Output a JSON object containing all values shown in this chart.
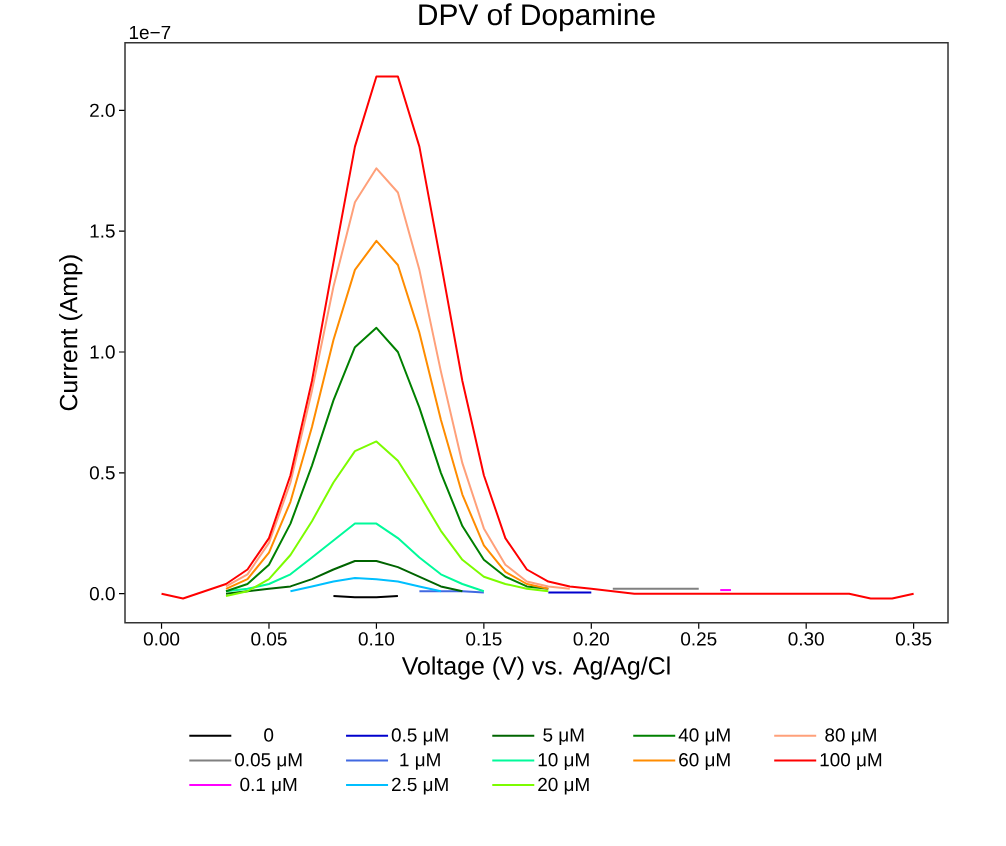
{
  "chart_data": {
    "type": "line",
    "title": "DPV of Dopamine",
    "xlabel": "Voltage (V) vs. Ag/Ag/Cl",
    "ylabel": "Current (Amp)",
    "annotations": [
      "1e−7"
    ],
    "x": [
      0,
      0.01,
      0.02,
      0.03,
      0.04,
      0.05,
      0.06,
      0.07,
      0.08,
      0.09,
      0.1,
      0.11,
      0.12,
      0.13,
      0.14,
      0.15,
      0.16,
      0.17,
      0.18,
      0.19,
      0.2,
      0.21,
      0.22,
      0.23,
      0.24,
      0.25,
      0.26,
      0.27,
      0.28,
      0.29,
      0.3,
      0.31,
      0.32,
      0.33,
      0.34,
      0.35
    ],
    "xlim": [
      -0.017,
      0.366
    ],
    "ylim": [
      -0.12,
      2.28
    ],
    "xticks": [
      {
        "value": 0,
        "label": "0.00"
      },
      {
        "value": 0.05,
        "label": "0.05"
      },
      {
        "value": 0.1,
        "label": "0.10"
      },
      {
        "value": 0.15,
        "label": "0.15"
      },
      {
        "value": 0.2,
        "label": "0.20"
      },
      {
        "value": 0.25,
        "label": "0.25"
      },
      {
        "value": 0.3,
        "label": "0.30"
      },
      {
        "value": 0.35,
        "label": "0.35"
      }
    ],
    "yticks": [
      {
        "value": 0,
        "label": "0.0"
      },
      {
        "value": 0.5,
        "label": "0.5"
      },
      {
        "value": 1,
        "label": "1.0"
      },
      {
        "value": 1.5,
        "label": "1.5"
      },
      {
        "value": 2,
        "label": "2.0"
      }
    ],
    "legend": "bottom",
    "marker": "none",
    "line_style": "solid",
    "grid": false,
    "series": [
      {
        "name": "0",
        "color": "#000000",
        "values": [
          null,
          null,
          null,
          null,
          null,
          null,
          null,
          null,
          -0.01,
          -0.015,
          -0.015,
          -0.01,
          null,
          null,
          null,
          null,
          null,
          null,
          null,
          null,
          null,
          null,
          null,
          null,
          null,
          null,
          null,
          null,
          null,
          null,
          null,
          null,
          null,
          null,
          null,
          null
        ]
      },
      {
        "name": "0.05 μM",
        "color": "#808080",
        "values": [
          null,
          null,
          null,
          null,
          null,
          null,
          null,
          null,
          null,
          null,
          null,
          null,
          null,
          null,
          null,
          null,
          null,
          null,
          null,
          null,
          null,
          0.02,
          0.02,
          0.02,
          0.02,
          0.02,
          null,
          null,
          null,
          null,
          null,
          null,
          null,
          null,
          null,
          null
        ]
      },
      {
        "name": "0.1 μM",
        "color": "#ff00ff",
        "x": [
          0.26,
          0.265
        ],
        "values": [
          0.015,
          0.015
        ]
      },
      {
        "name": "0.5 μM",
        "color": "#0000cd",
        "values": [
          null,
          null,
          null,
          null,
          null,
          null,
          null,
          null,
          null,
          null,
          null,
          null,
          null,
          null,
          null,
          null,
          null,
          null,
          0.005,
          0.005,
          0.005,
          null,
          null,
          null,
          null,
          null,
          null,
          null,
          null,
          null,
          null,
          null,
          null,
          null,
          null,
          null
        ]
      },
      {
        "name": "1 μM",
        "color": "#4169e1",
        "values": [
          null,
          null,
          null,
          null,
          null,
          null,
          null,
          null,
          null,
          null,
          null,
          null,
          0.01,
          0.01,
          0.01,
          0.005,
          null,
          null,
          null,
          null,
          null,
          null,
          null,
          null,
          null,
          null,
          null,
          null,
          null,
          null,
          null,
          null,
          null,
          null,
          null,
          null
        ]
      },
      {
        "name": "2.5 μM",
        "color": "#00bfff",
        "values": [
          null,
          null,
          null,
          null,
          null,
          null,
          0.01,
          0.03,
          0.05,
          0.065,
          0.06,
          0.05,
          0.03,
          0.01,
          null,
          null,
          null,
          null,
          null,
          null,
          null,
          null,
          null,
          null,
          null,
          null,
          null,
          null,
          null,
          null,
          null,
          null,
          null,
          null,
          null,
          null
        ]
      },
      {
        "name": "5 μM",
        "color": "#006400",
        "values": [
          null,
          null,
          null,
          0,
          0.01,
          0.02,
          0.03,
          0.06,
          0.1,
          0.135,
          0.135,
          0.11,
          0.07,
          0.03,
          0.01,
          null,
          null,
          null,
          null,
          null,
          null,
          null,
          null,
          null,
          null,
          null,
          null,
          null,
          null,
          null,
          null,
          null,
          null,
          null,
          null,
          null
        ]
      },
      {
        "name": "10 μM",
        "color": "#00fa9a",
        "values": [
          null,
          null,
          null,
          0.01,
          0.02,
          0.04,
          0.08,
          0.15,
          0.22,
          0.29,
          0.29,
          0.23,
          0.15,
          0.08,
          0.04,
          0.01,
          null,
          null,
          null,
          null,
          null,
          null,
          null,
          null,
          null,
          null,
          null,
          null,
          null,
          null,
          null,
          null,
          null,
          null,
          null,
          null
        ]
      },
      {
        "name": "20 μM",
        "color": "#7cfc00",
        "values": [
          null,
          null,
          null,
          -0.01,
          0.01,
          0.06,
          0.16,
          0.3,
          0.46,
          0.59,
          0.63,
          0.55,
          0.41,
          0.26,
          0.14,
          0.07,
          0.04,
          0.02,
          0.01,
          null,
          null,
          null,
          null,
          null,
          null,
          null,
          null,
          null,
          null,
          null,
          null,
          null,
          null,
          null,
          null,
          null
        ]
      },
      {
        "name": "40 μM",
        "color": "#008000",
        "values": [
          null,
          null,
          null,
          0.01,
          0.04,
          0.12,
          0.29,
          0.53,
          0.8,
          1.02,
          1.1,
          1,
          0.77,
          0.5,
          0.28,
          0.14,
          0.07,
          0.03,
          0.02,
          null,
          null,
          null,
          null,
          null,
          null,
          null,
          null,
          null,
          null,
          null,
          null,
          null,
          null,
          null,
          null,
          null
        ]
      },
      {
        "name": "60 μM",
        "color": "#ff8c00",
        "values": [
          null,
          null,
          null,
          0.02,
          0.06,
          0.17,
          0.38,
          0.69,
          1.05,
          1.34,
          1.46,
          1.36,
          1.08,
          0.72,
          0.41,
          0.2,
          0.09,
          0.04,
          0.02,
          null,
          null,
          null,
          null,
          null,
          null,
          null,
          null,
          null,
          null,
          null,
          null,
          null,
          null,
          null,
          null,
          null
        ]
      },
      {
        "name": "80 μM",
        "color": "#ffa07a",
        "values": [
          null,
          null,
          null,
          0.03,
          0.08,
          0.21,
          0.46,
          0.84,
          1.27,
          1.62,
          1.76,
          1.66,
          1.34,
          0.92,
          0.54,
          0.27,
          0.12,
          0.05,
          0.03,
          0.02,
          null,
          null,
          null,
          null,
          null,
          null,
          null,
          null,
          null,
          null,
          null,
          null,
          null,
          null,
          null,
          null
        ]
      },
      {
        "name": "100 μM",
        "color": "#ff0000",
        "values": [
          0,
          -0.02,
          0.01,
          0.04,
          0.1,
          0.23,
          0.49,
          0.88,
          1.37,
          1.85,
          2.14,
          2.14,
          1.85,
          1.37,
          0.88,
          0.49,
          0.23,
          0.1,
          0.05,
          0.03,
          0.02,
          0.01,
          0,
          0,
          0,
          0,
          0,
          0,
          0,
          0,
          0,
          0,
          0,
          -0.02,
          -0.02,
          0
        ]
      }
    ]
  }
}
